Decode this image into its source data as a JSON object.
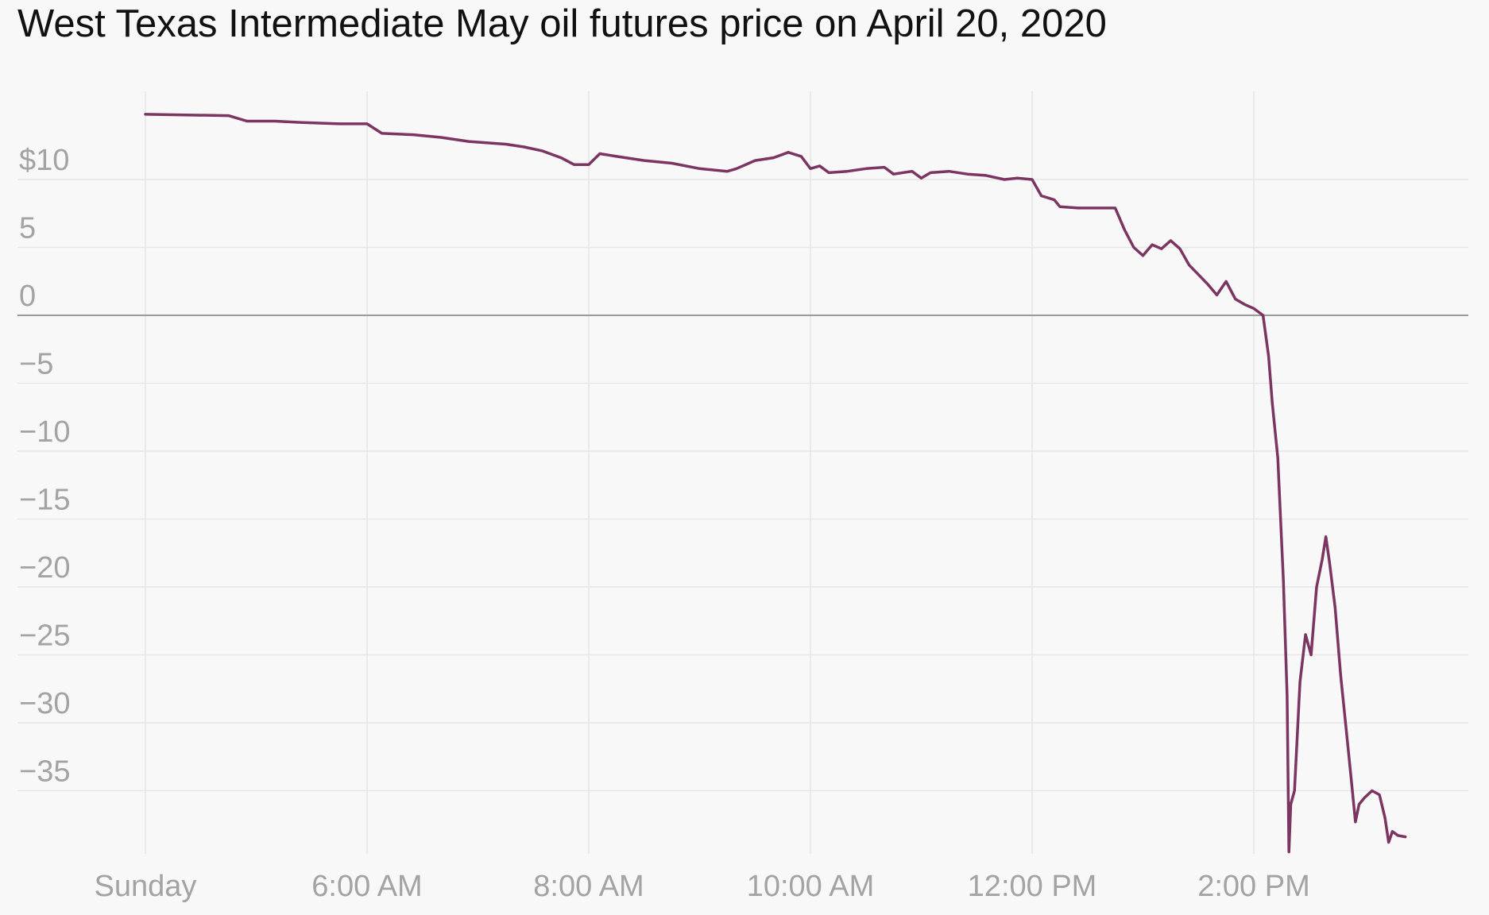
{
  "chart_data": {
    "type": "line",
    "title": "West Texas Intermediate May oil futures price on April 20, 2020",
    "xlabel": "",
    "ylabel": "",
    "x_tick_labels": [
      "Sunday",
      "6:00 AM",
      "8:00 AM",
      "10:00 AM",
      "12:00 PM",
      "2:00 PM"
    ],
    "y_tick_labels": [
      "$10",
      "5",
      "0",
      "−5",
      "−10",
      "−15",
      "−20",
      "−25",
      "−30",
      "−35"
    ],
    "y_ticks": [
      10,
      5,
      0,
      -5,
      -10,
      -15,
      -20,
      -25,
      -30,
      -35
    ],
    "ylim": [
      -39.7,
      16.3
    ],
    "grid": true,
    "line_color": "#7b3560",
    "zero_line_color": "#9a9a9a",
    "series": [
      {
        "points": [
          [
            "Sunday",
            14.8
          ],
          [
            "4:45 AM",
            14.7
          ],
          [
            "4:55 AM",
            14.3
          ],
          [
            "5:10 AM",
            14.3
          ],
          [
            "5:25 AM",
            14.2
          ],
          [
            "5:45 AM",
            14.1
          ],
          [
            "6:00 AM",
            14.1
          ],
          [
            "6:08 AM",
            13.4
          ],
          [
            "6:25 AM",
            13.3
          ],
          [
            "6:40 AM",
            13.1
          ],
          [
            "6:55 AM",
            12.8
          ],
          [
            "7:15 AM",
            12.6
          ],
          [
            "7:25 AM",
            12.4
          ],
          [
            "7:35 AM",
            12.1
          ],
          [
            "7:45 AM",
            11.6
          ],
          [
            "7:52 AM",
            11.1
          ],
          [
            "8:00 AM",
            11.1
          ],
          [
            "8:06 AM",
            11.9
          ],
          [
            "8:15 AM",
            11.7
          ],
          [
            "8:30 AM",
            11.4
          ],
          [
            "8:45 AM",
            11.2
          ],
          [
            "9:00 AM",
            10.8
          ],
          [
            "9:15 AM",
            10.6
          ],
          [
            "9:20 AM",
            10.8
          ],
          [
            "9:30 AM",
            11.4
          ],
          [
            "9:40 AM",
            11.6
          ],
          [
            "9:48 AM",
            12.0
          ],
          [
            "9:55 AM",
            11.7
          ],
          [
            "10:00 AM",
            10.8
          ],
          [
            "10:05 AM",
            11.0
          ],
          [
            "10:10 AM",
            10.5
          ],
          [
            "10:20 AM",
            10.6
          ],
          [
            "10:30 AM",
            10.8
          ],
          [
            "10:40 AM",
            10.9
          ],
          [
            "10:45 AM",
            10.4
          ],
          [
            "10:55 AM",
            10.6
          ],
          [
            "11:00 AM",
            10.1
          ],
          [
            "11:05 AM",
            10.5
          ],
          [
            "11:15 AM",
            10.6
          ],
          [
            "11:25 AM",
            10.4
          ],
          [
            "11:35 AM",
            10.3
          ],
          [
            "11:45 AM",
            10.0
          ],
          [
            "11:52 AM",
            10.1
          ],
          [
            "12:00 PM",
            10.0
          ],
          [
            "12:05 PM",
            8.8
          ],
          [
            "12:12 PM",
            8.5
          ],
          [
            "12:15 PM",
            8.0
          ],
          [
            "12:25 PM",
            7.9
          ],
          [
            "12:45 PM",
            7.9
          ],
          [
            "12:50 PM",
            6.3
          ],
          [
            "12:55 PM",
            5.0
          ],
          [
            "1:00 PM",
            4.4
          ],
          [
            "1:05 PM",
            5.2
          ],
          [
            "1:10 PM",
            4.9
          ],
          [
            "1:15 PM",
            5.5
          ],
          [
            "1:20 PM",
            4.9
          ],
          [
            "1:25 PM",
            3.7
          ],
          [
            "1:30 PM",
            3.0
          ],
          [
            "1:35 PM",
            2.3
          ],
          [
            "1:40 PM",
            1.5
          ],
          [
            "1:45 PM",
            2.5
          ],
          [
            "1:50 PM",
            1.2
          ],
          [
            "1:55 PM",
            0.8
          ],
          [
            "2:00 PM",
            0.5
          ],
          [
            "2:05 PM",
            0.0
          ],
          [
            "2:08 PM",
            -3.0
          ],
          [
            "2:10 PM",
            -6.5
          ],
          [
            "2:13 PM",
            -10.5
          ],
          [
            "2:16 PM",
            -19.5
          ],
          [
            "2:18 PM",
            -28.0
          ],
          [
            "2:19 PM",
            -39.5
          ],
          [
            "2:20 PM",
            -36.0
          ],
          [
            "2:22 PM",
            -35.0
          ],
          [
            "2:25 PM",
            -27.0
          ],
          [
            "2:28 PM",
            -23.5
          ],
          [
            "2:31 PM",
            -25.0
          ],
          [
            "2:34 PM",
            -20.0
          ],
          [
            "2:37 PM",
            -18.0
          ],
          [
            "2:39 PM",
            -16.3
          ],
          [
            "2:41 PM",
            -18.2
          ],
          [
            "2:44 PM",
            -21.5
          ],
          [
            "2:47 PM",
            -26.5
          ],
          [
            "2:50 PM",
            -30.5
          ],
          [
            "2:53 PM",
            -34.5
          ],
          [
            "2:55 PM",
            -37.3
          ],
          [
            "2:57 PM",
            -36.0
          ],
          [
            "3:00 PM",
            -35.5
          ],
          [
            "3:04 PM",
            -35.0
          ],
          [
            "3:08 PM",
            -35.3
          ],
          [
            "3:11 PM",
            -37.0
          ],
          [
            "3:13 PM",
            -38.8
          ],
          [
            "3:15 PM",
            -38.0
          ],
          [
            "3:18 PM",
            -38.3
          ],
          [
            "3:22 PM",
            -38.4
          ]
        ]
      }
    ]
  }
}
